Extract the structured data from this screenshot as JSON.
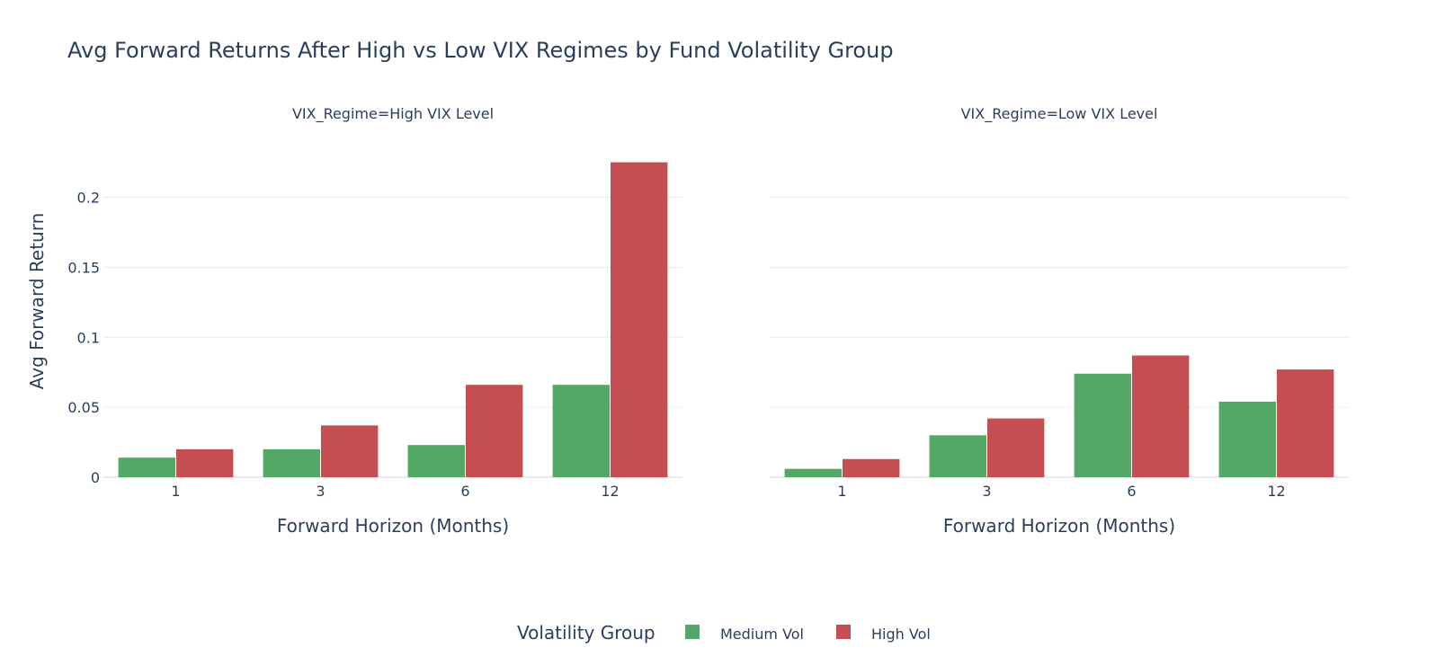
{
  "colors": {
    "Medium Vol": "#54a866",
    "High Vol": "#c44e52",
    "text": "#2a3f5f",
    "grid": "#e5ecf6"
  },
  "legend": {
    "title": "Volatility Group",
    "placement": "bottom-center"
  },
  "chart_data": {
    "type": "bar",
    "title": "Avg Forward Returns After High vs Low VIX Regimes by Fund Volatility Group",
    "ylabel": "Avg Forward Return",
    "ylim": [
      0,
      0.235
    ],
    "yticks": [
      0,
      0.05,
      0.1,
      0.15,
      0.2
    ],
    "ytick_labels": [
      "0",
      "0.05",
      "0.1",
      "0.15",
      "0.2"
    ],
    "grid": true,
    "facets": [
      {
        "title": "VIX_Regime=High VIX Level",
        "xlabel": "Forward Horizon (Months)",
        "categories": [
          "1",
          "3",
          "6",
          "12"
        ],
        "series": [
          {
            "name": "Medium Vol",
            "values": [
              0.014,
              0.02,
              0.023,
              0.066
            ]
          },
          {
            "name": "High Vol",
            "values": [
              0.02,
              0.037,
              0.066,
              0.225
            ]
          }
        ]
      },
      {
        "title": "VIX_Regime=Low VIX Level",
        "xlabel": "Forward Horizon (Months)",
        "categories": [
          "1",
          "3",
          "6",
          "12"
        ],
        "series": [
          {
            "name": "Medium Vol",
            "values": [
              0.006,
              0.03,
              0.074,
              0.054
            ]
          },
          {
            "name": "High Vol",
            "values": [
              0.013,
              0.042,
              0.087,
              0.077
            ]
          }
        ]
      }
    ]
  }
}
